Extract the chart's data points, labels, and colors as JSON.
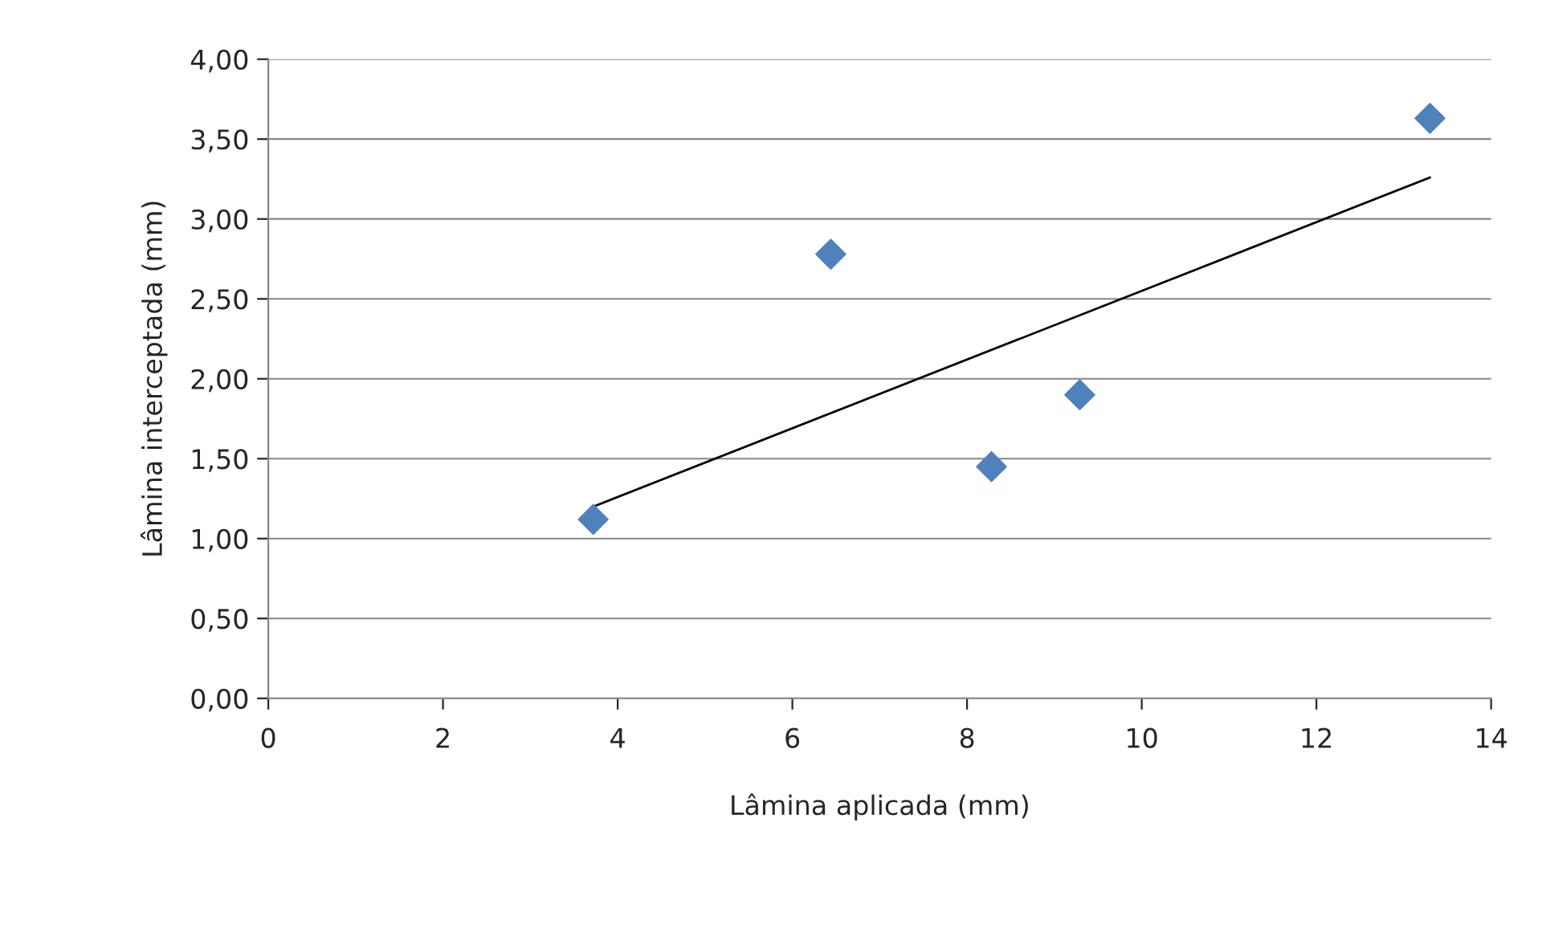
{
  "chart_data": {
    "type": "scatter",
    "xlabel": "Lâmina aplicada (mm)",
    "ylabel": "Lâmina interceptada (mm)",
    "x": [
      3.72,
      6.44,
      8.28,
      9.29,
      13.3
    ],
    "series": [
      {
        "color": "#4f81bd",
        "marker": "diamond",
        "values": [
          1.12,
          2.78,
          1.45,
          1.9,
          3.63
        ]
      },
      {
        "type": "line",
        "color": "#000000",
        "marker": "none",
        "x": [
          3.72,
          13.3
        ],
        "values": [
          1.2,
          3.26
        ]
      }
    ],
    "xlim": [
      0,
      14
    ],
    "xticks": [
      0,
      2,
      4,
      6,
      8,
      10,
      12,
      14
    ],
    "ylim": [
      0,
      4
    ],
    "yticks": [
      {
        "value": 0,
        "label": "0,00"
      },
      {
        "value": 0.5,
        "label": "0,50"
      },
      {
        "value": 1,
        "label": "1,00"
      },
      {
        "value": 1.5,
        "label": "1,50"
      },
      {
        "value": 2,
        "label": "2,00"
      },
      {
        "value": 2.5,
        "label": "2,50"
      },
      {
        "value": 3,
        "label": "3,00"
      },
      {
        "value": 3.5,
        "label": "3,50"
      },
      {
        "value": 4,
        "label": "4,00"
      }
    ],
    "grid": "y",
    "legend": false
  }
}
